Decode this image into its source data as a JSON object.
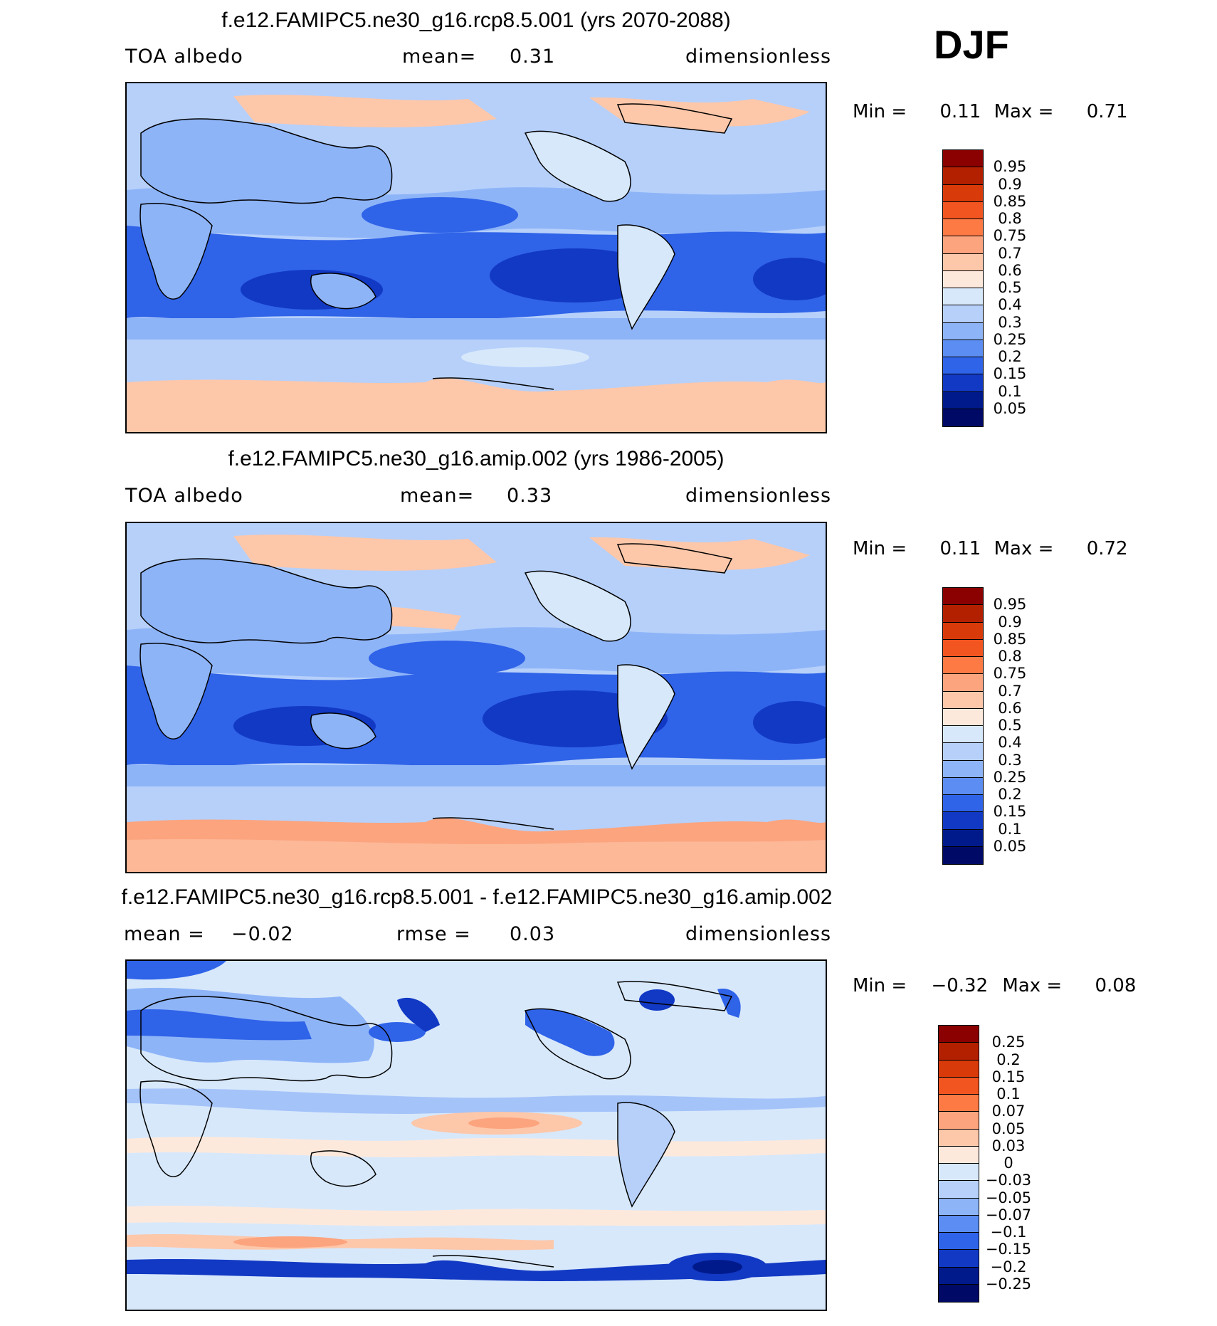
{
  "season": "DJF",
  "panels": [
    {
      "title": "f.e12.FAMIPC5.ne30_g16.rcp8.5.001 (yrs 2070-2088)",
      "left_label": "TOA  albedo",
      "mid_label": "mean=",
      "mid_value": "0.31",
      "right_label": "dimensionless",
      "min_label": "Min  =",
      "min_value": "0.11",
      "max_label": "Max  =",
      "max_value": "0.71",
      "colorbar_labels": [
        "0.95",
        "0.9",
        "0.85",
        "0.8",
        "0.75",
        "0.7",
        "0.6",
        "0.5",
        "0.4",
        "0.3",
        "0.25",
        "0.2",
        "0.15",
        "0.1",
        "0.05"
      ]
    },
    {
      "title": "f.e12.FAMIPC5.ne30_g16.amip.002 (yrs 1986-2005)",
      "left_label": "TOA  albedo",
      "mid_label": "mean=",
      "mid_value": "0.33",
      "right_label": "dimensionless",
      "min_label": "Min  =",
      "min_value": "0.11",
      "max_label": "Max  =",
      "max_value": "0.72",
      "colorbar_labels": [
        "0.95",
        "0.9",
        "0.85",
        "0.8",
        "0.75",
        "0.7",
        "0.6",
        "0.5",
        "0.4",
        "0.3",
        "0.25",
        "0.2",
        "0.15",
        "0.1",
        "0.05"
      ]
    },
    {
      "title": "f.e12.FAMIPC5.ne30_g16.rcp8.5.001 - f.e12.FAMIPC5.ne30_g16.amip.002",
      "left_label": "mean  =",
      "left_value": "−0.02",
      "mid_label": "rmse  =",
      "mid_value": "0.03",
      "right_label": "dimensionless",
      "min_label": "Min  =",
      "min_value": "−0.32",
      "max_label": "Max  =",
      "max_value": "0.08",
      "colorbar_labels": [
        "0.25",
        "0.2",
        "0.15",
        "0.1",
        "0.07",
        "0.05",
        "0.03",
        "0",
        "−0.03",
        "−0.05",
        "−0.07",
        "−0.1",
        "−0.15",
        "−0.2",
        "−0.25"
      ]
    }
  ],
  "colors": {
    "scale": [
      "#8b0000",
      "#b22000",
      "#d93a0a",
      "#f25520",
      "#fd7a45",
      "#fca47e",
      "#fdc7aa",
      "#fde9dc",
      "#d7e8fb",
      "#b6d0fa",
      "#8eb4f8",
      "#5b8df2",
      "#2f63e8",
      "#1239c4",
      "#001a8c",
      "#000a66"
    ]
  },
  "chart_data": [
    {
      "type": "heatmap",
      "title": "f.e12.FAMIPC5.ne30_g16.rcp8.5.001 (yrs 2070-2088)",
      "variable": "TOA albedo",
      "units": "dimensionless",
      "season": "DJF",
      "mean": 0.31,
      "min": 0.11,
      "max": 0.71,
      "contour_levels": [
        0.05,
        0.1,
        0.15,
        0.2,
        0.25,
        0.3,
        0.4,
        0.5,
        0.6,
        0.7,
        0.75,
        0.8,
        0.85,
        0.9,
        0.95
      ]
    },
    {
      "type": "heatmap",
      "title": "f.e12.FAMIPC5.ne30_g16.amip.002 (yrs 1986-2005)",
      "variable": "TOA albedo",
      "units": "dimensionless",
      "season": "DJF",
      "mean": 0.33,
      "min": 0.11,
      "max": 0.72,
      "contour_levels": [
        0.05,
        0.1,
        0.15,
        0.2,
        0.25,
        0.3,
        0.4,
        0.5,
        0.6,
        0.7,
        0.75,
        0.8,
        0.85,
        0.9,
        0.95
      ]
    },
    {
      "type": "heatmap",
      "title": "f.e12.FAMIPC5.ne30_g16.rcp8.5.001 - f.e12.FAMIPC5.ne30_g16.amip.002",
      "units": "dimensionless",
      "season": "DJF",
      "mean": -0.02,
      "rmse": 0.03,
      "min": -0.32,
      "max": 0.08,
      "contour_levels": [
        -0.25,
        -0.2,
        -0.15,
        -0.1,
        -0.07,
        -0.05,
        -0.03,
        0,
        0.03,
        0.05,
        0.07,
        0.1,
        0.15,
        0.2,
        0.25
      ]
    }
  ]
}
